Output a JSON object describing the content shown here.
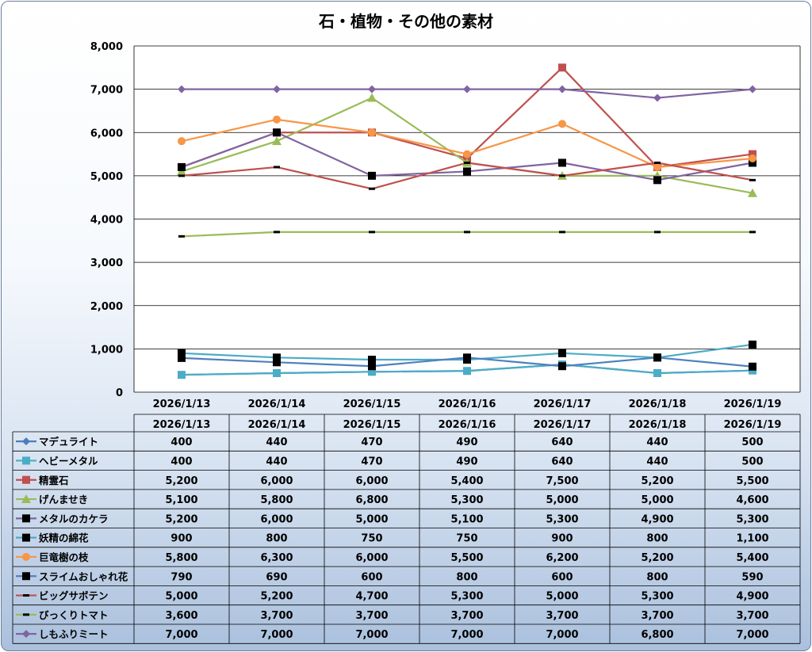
{
  "chart_data": {
    "type": "line",
    "title": "石・植物・その他の素材",
    "categories": [
      "2026/1/13",
      "2026/1/14",
      "2026/1/15",
      "2026/1/16",
      "2026/1/17",
      "2026/1/18",
      "2026/1/19"
    ],
    "ylim": [
      0,
      8000
    ],
    "yticks": [
      "0",
      "1,000",
      "2,000",
      "3,000",
      "4,000",
      "5,000",
      "6,000",
      "7,000",
      "8,000"
    ],
    "grid": true,
    "legend": "data-table-below",
    "series": [
      {
        "name": "マデュライト",
        "color": "#4a7ebb",
        "marker": "diamond",
        "values": [
          400,
          440,
          470,
          490,
          640,
          440,
          500
        ],
        "labels": [
          "400",
          "440",
          "470",
          "490",
          "640",
          "440",
          "500"
        ]
      },
      {
        "name": "ヘビーメタル",
        "color": "#4bacc6",
        "marker": "square",
        "values": [
          400,
          440,
          470,
          490,
          640,
          440,
          500
        ],
        "labels": [
          "400",
          "440",
          "470",
          "490",
          "640",
          "440",
          "500"
        ]
      },
      {
        "name": "精霊石",
        "color": "#c0504d",
        "marker": "square",
        "values": [
          5200,
          6000,
          6000,
          5400,
          7500,
          5200,
          5500
        ],
        "labels": [
          "5,200",
          "6,000",
          "6,000",
          "5,400",
          "7,500",
          "5,200",
          "5,500"
        ]
      },
      {
        "name": "げんませき",
        "color": "#9bbb59",
        "marker": "triangle",
        "values": [
          5100,
          5800,
          6800,
          5300,
          5000,
          5000,
          4600
        ],
        "labels": [
          "5,100",
          "5,800",
          "6,800",
          "5,300",
          "5,000",
          "5,000",
          "4,600"
        ]
      },
      {
        "name": "メタルのカケラ",
        "color": "#8064a2",
        "marker": "blacksquare",
        "values": [
          5200,
          6000,
          5000,
          5100,
          5300,
          4900,
          5300
        ],
        "labels": [
          "5,200",
          "6,000",
          "5,000",
          "5,100",
          "5,300",
          "4,900",
          "5,300"
        ]
      },
      {
        "name": "妖精の綿花",
        "color": "#4bacc6",
        "marker": "blacksquare",
        "values": [
          900,
          800,
          750,
          750,
          900,
          800,
          1100
        ],
        "labels": [
          "900",
          "800",
          "750",
          "750",
          "900",
          "800",
          "1,100"
        ]
      },
      {
        "name": "巨竜樹の枝",
        "color": "#f79646",
        "marker": "circle",
        "values": [
          5800,
          6300,
          6000,
          5500,
          6200,
          5200,
          5400
        ],
        "labels": [
          "5,800",
          "6,300",
          "6,000",
          "5,500",
          "6,200",
          "5,200",
          "5,400"
        ]
      },
      {
        "name": "スライムおしゃれ花",
        "color": "#4f81bd",
        "marker": "blacksquare",
        "values": [
          790,
          690,
          600,
          800,
          600,
          800,
          590
        ],
        "labels": [
          "790",
          "690",
          "600",
          "800",
          "600",
          "800",
          "590"
        ]
      },
      {
        "name": "ビッグサボテン",
        "color": "#c0504d",
        "marker": "dash",
        "values": [
          5000,
          5200,
          4700,
          5300,
          5000,
          5300,
          4900
        ],
        "labels": [
          "5,000",
          "5,200",
          "4,700",
          "5,300",
          "5,000",
          "5,300",
          "4,900"
        ]
      },
      {
        "name": "びっくりトマト",
        "color": "#9bbb59",
        "marker": "dash",
        "values": [
          3600,
          3700,
          3700,
          3700,
          3700,
          3700,
          3700
        ],
        "labels": [
          "3,600",
          "3,700",
          "3,700",
          "3,700",
          "3,700",
          "3,700",
          "3,700"
        ]
      },
      {
        "name": "しもふりミート",
        "color": "#8064a2",
        "marker": "diamond",
        "values": [
          7000,
          7000,
          7000,
          7000,
          7000,
          6800,
          7000
        ],
        "labels": [
          "7,000",
          "7,000",
          "7,000",
          "7,000",
          "7,000",
          "6,800",
          "7,000"
        ]
      }
    ]
  }
}
